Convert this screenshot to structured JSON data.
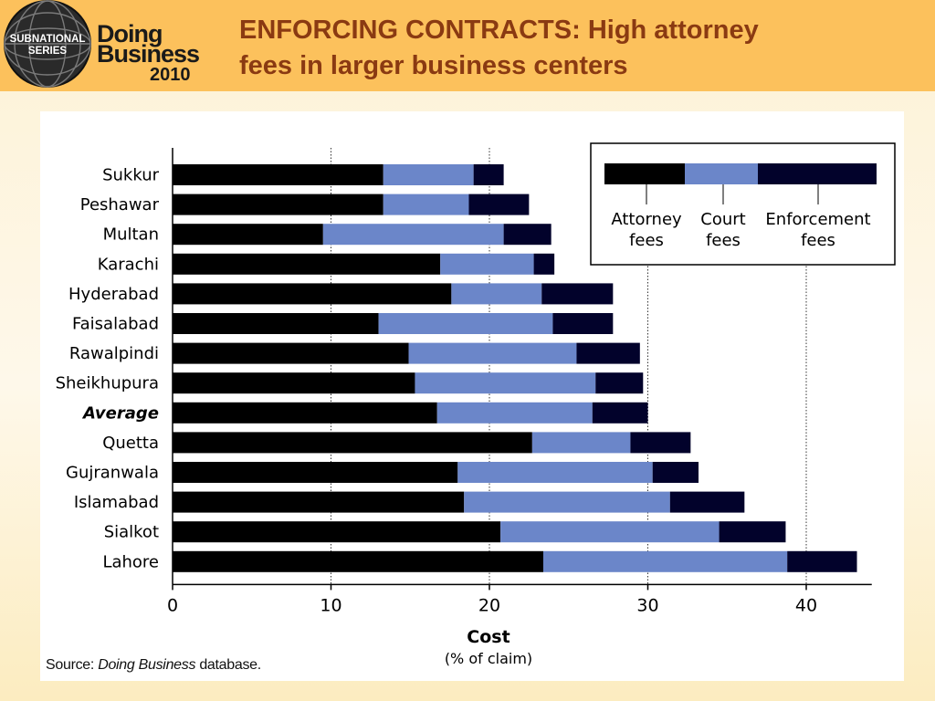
{
  "logo": {
    "series_line1": "SUBNATIONAL",
    "series_line2": "SERIES",
    "brand_line1": "Doing",
    "brand_line2": "Business",
    "year": "2010"
  },
  "slide": {
    "title_line1": "ENFORCING CONTRACTS: High attorney",
    "title_line2": "fees in larger business centers"
  },
  "source": {
    "prefix": "Source: ",
    "italic": "Doing Business",
    "suffix": " database."
  },
  "chart_data": {
    "type": "bar",
    "orientation": "horizontal",
    "stacked": true,
    "title": "",
    "xlabel": "Cost",
    "xlabel_sub": "(% of claim)",
    "ylabel": "",
    "xlim": [
      0,
      45
    ],
    "xticks": [
      0,
      10,
      20,
      30,
      40
    ],
    "gridlines": [
      10,
      20,
      30,
      40
    ],
    "grid": true,
    "legend_position": "top-right",
    "categories": [
      "Sukkur",
      "Peshawar",
      "Multan",
      "Karachi",
      "Hyderabad",
      "Faisalabad",
      "Rawalpindi",
      "Sheikhupura",
      "Average",
      "Quetta",
      "Gujranwala",
      "Islamabad",
      "Sialkot",
      "Lahore"
    ],
    "emphasized_category": "Average",
    "series": [
      {
        "name": "Attorney fees",
        "color": "#000000",
        "values": [
          13.3,
          13.3,
          9.5,
          16.9,
          17.6,
          13.0,
          14.9,
          15.3,
          16.7,
          22.7,
          18.0,
          18.4,
          20.7,
          23.4
        ]
      },
      {
        "name": "Court fees",
        "color": "#6b86c9",
        "values": [
          5.7,
          5.4,
          11.4,
          5.9,
          5.7,
          11.0,
          10.6,
          11.4,
          9.8,
          6.2,
          12.3,
          13.0,
          13.8,
          15.4
        ]
      },
      {
        "name": "Enforcement fees",
        "color": "#02022b",
        "values": [
          1.9,
          3.8,
          3.0,
          1.3,
          4.5,
          3.8,
          4.0,
          3.0,
          3.5,
          3.8,
          2.9,
          4.7,
          4.2,
          4.4
        ]
      }
    ],
    "legend_labels": [
      {
        "line1": "Attorney",
        "line2": "fees"
      },
      {
        "line1": "Court",
        "line2": "fees"
      },
      {
        "line1": "Enforcement",
        "line2": "fees"
      }
    ]
  }
}
